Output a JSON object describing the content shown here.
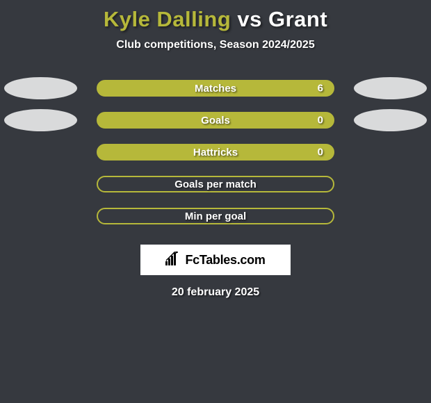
{
  "title": {
    "player1": "Kyle Dalling",
    "vs": " vs ",
    "player2": "Grant",
    "color1": "#b6b83a",
    "color2": "#ffffff"
  },
  "subtitle": "Club competitions, Season 2024/2025",
  "background_color": "#36393f",
  "ellipse": {
    "color1": "#d9dadb",
    "color2": "#d9dadb"
  },
  "bar_style": {
    "fill": "#b6b83a",
    "border": "#b6b83a",
    "border_width": 2,
    "radius": 12
  },
  "rows": [
    {
      "label": "Matches",
      "value": "6",
      "filled": true,
      "left_ellipse": true,
      "right_ellipse": true
    },
    {
      "label": "Goals",
      "value": "0",
      "filled": true,
      "left_ellipse": true,
      "right_ellipse": true
    },
    {
      "label": "Hattricks",
      "value": "0",
      "filled": true,
      "left_ellipse": false,
      "right_ellipse": false
    },
    {
      "label": "Goals per match",
      "value": "",
      "filled": false,
      "left_ellipse": false,
      "right_ellipse": false
    },
    {
      "label": "Min per goal",
      "value": "",
      "filled": false,
      "left_ellipse": false,
      "right_ellipse": false
    }
  ],
  "logo_text": "FcTables.com",
  "date": "20 february 2025"
}
